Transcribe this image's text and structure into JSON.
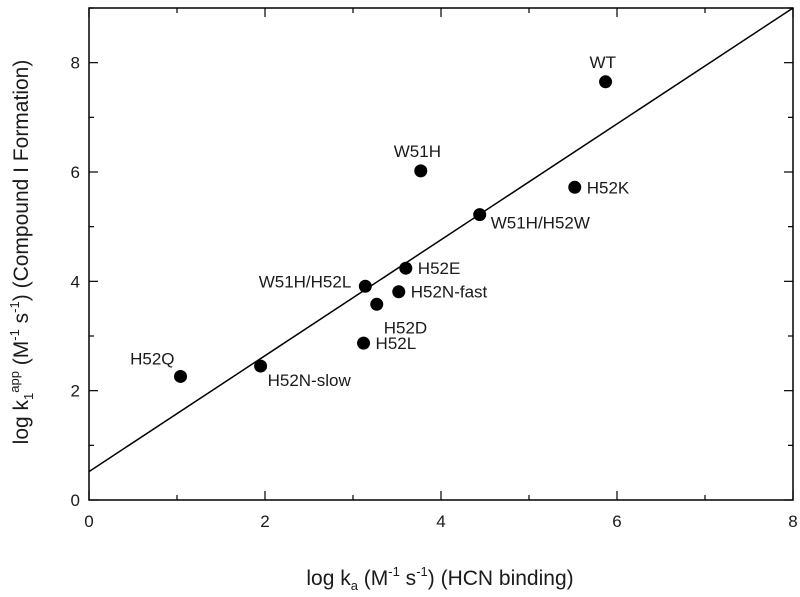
{
  "chart_data": {
    "type": "scatter",
    "xlabel": {
      "parts": [
        {
          "text": "log k",
          "kind": "normal"
        },
        {
          "text": "a",
          "kind": "sub"
        },
        {
          "text": "  (M",
          "kind": "normal"
        },
        {
          "text": "-1",
          "kind": "sup"
        },
        {
          "text": " s",
          "kind": "normal"
        },
        {
          "text": "-1",
          "kind": "sup"
        },
        {
          "text": ")  (HCN binding)",
          "kind": "normal"
        }
      ]
    },
    "ylabel": {
      "parts": [
        {
          "text": "log k",
          "kind": "normal"
        },
        {
          "text": "1",
          "kind": "sub"
        },
        {
          "text": "app",
          "kind": "sup"
        },
        {
          "text": "  (M",
          "kind": "normal"
        },
        {
          "text": "-1",
          "kind": "sup"
        },
        {
          "text": " s",
          "kind": "normal"
        },
        {
          "text": "-1",
          "kind": "sup"
        },
        {
          "text": ") (Compound I Formation)",
          "kind": "normal"
        }
      ]
    },
    "xlim": [
      0,
      8
    ],
    "ylim": [
      0,
      9
    ],
    "xticks": [
      0,
      2,
      4,
      6,
      8
    ],
    "yticks": [
      0,
      2,
      4,
      6,
      8
    ],
    "grid": false,
    "points": [
      {
        "label": "WT",
        "x": 5.87,
        "y": 7.65,
        "label_side": "above"
      },
      {
        "label": "W51H",
        "x": 3.77,
        "y": 6.02,
        "label_side": "above"
      },
      {
        "label": "H52K",
        "x": 5.52,
        "y": 5.72,
        "label_side": "right"
      },
      {
        "label": "W51H/H52W",
        "x": 4.44,
        "y": 5.22,
        "label_side": "below-right"
      },
      {
        "label": "H52E",
        "x": 3.6,
        "y": 4.24,
        "label_side": "right"
      },
      {
        "label": "W51H/H52L",
        "x": 3.14,
        "y": 3.91,
        "label_side": "left"
      },
      {
        "label": "H52N-fast",
        "x": 3.52,
        "y": 3.81,
        "label_side": "right"
      },
      {
        "label": "H52D",
        "x": 3.27,
        "y": 3.58,
        "label_side": "below-right"
      },
      {
        "label": "H52L",
        "x": 3.12,
        "y": 2.87,
        "label_side": "right"
      },
      {
        "label": "H52Q",
        "x": 1.04,
        "y": 2.26,
        "label_side": "above-left"
      },
      {
        "label": "H52N-slow",
        "x": 1.95,
        "y": 2.45,
        "label_side": "below-right"
      }
    ],
    "fit_line": {
      "intercept": 0.52,
      "slope": 1.06
    },
    "colors": {
      "point": "#000000",
      "axis": "#000000",
      "line": "#000000"
    }
  }
}
